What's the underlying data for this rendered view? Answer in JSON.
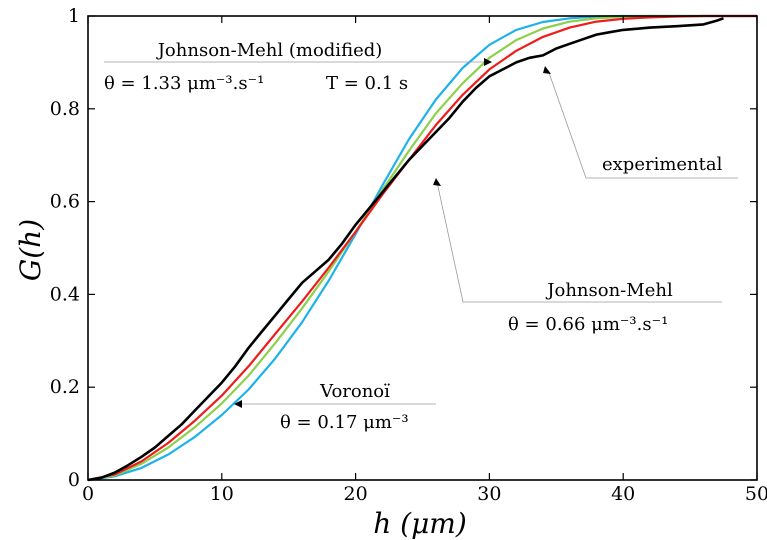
{
  "chart_data": {
    "type": "line",
    "xlabel": "h (μm)",
    "ylabel": "G(h)",
    "xlim": [
      0,
      50
    ],
    "ylim": [
      0,
      1
    ],
    "x_ticks": [
      "0",
      "10",
      "20",
      "30",
      "40",
      "50"
    ],
    "y_ticks": [
      "0",
      "0.2",
      "0.4",
      "0.6",
      "0.8",
      "1"
    ],
    "grid": false,
    "series": [
      {
        "name": "experimental",
        "color": "#000000",
        "x": [
          0,
          1,
          2,
          3,
          4,
          5,
          6,
          7,
          8,
          9,
          10,
          11,
          12,
          13,
          14,
          15,
          16,
          17,
          18,
          19,
          20,
          21,
          22,
          23,
          24,
          25,
          26,
          27,
          28,
          29,
          30,
          31,
          32,
          33,
          34,
          35,
          36,
          37,
          38,
          39,
          40,
          42,
          44,
          46,
          47,
          47.5
        ],
        "y": [
          0,
          0.005,
          0.016,
          0.032,
          0.05,
          0.07,
          0.095,
          0.12,
          0.15,
          0.18,
          0.21,
          0.245,
          0.285,
          0.32,
          0.355,
          0.39,
          0.425,
          0.45,
          0.475,
          0.51,
          0.55,
          0.585,
          0.62,
          0.655,
          0.69,
          0.72,
          0.75,
          0.78,
          0.815,
          0.845,
          0.87,
          0.885,
          0.9,
          0.91,
          0.915,
          0.93,
          0.94,
          0.95,
          0.96,
          0.965,
          0.97,
          0.975,
          0.978,
          0.982,
          0.99,
          0.995
        ]
      },
      {
        "name": "Johnson-Mehl (modified)",
        "color": "#ee1c1c",
        "x": [
          0,
          2,
          4,
          6,
          8,
          10,
          12,
          14,
          16,
          18,
          20,
          22,
          24,
          26,
          28,
          30,
          32,
          34,
          36,
          38,
          40,
          42,
          44,
          46,
          50
        ],
        "y": [
          0,
          0.012,
          0.04,
          0.08,
          0.128,
          0.182,
          0.245,
          0.315,
          0.385,
          0.458,
          0.535,
          0.615,
          0.69,
          0.765,
          0.83,
          0.885,
          0.925,
          0.955,
          0.975,
          0.988,
          0.994,
          0.997,
          0.999,
          1.0,
          1.0
        ]
      },
      {
        "name": "Johnson-Mehl",
        "color": "#8dd04b",
        "x": [
          0,
          2,
          4,
          6,
          8,
          10,
          12,
          14,
          16,
          18,
          20,
          22,
          24,
          26,
          28,
          30,
          32,
          34,
          36,
          38,
          40,
          42,
          50
        ],
        "y": [
          0,
          0.01,
          0.035,
          0.07,
          0.114,
          0.165,
          0.225,
          0.295,
          0.37,
          0.45,
          0.535,
          0.625,
          0.71,
          0.79,
          0.855,
          0.91,
          0.948,
          0.973,
          0.988,
          0.995,
          0.998,
          1.0,
          1.0
        ]
      },
      {
        "name": "Voronoï",
        "color": "#1eb2ea",
        "x": [
          0,
          2,
          4,
          6,
          8,
          10,
          12,
          14,
          16,
          18,
          20,
          22,
          24,
          26,
          28,
          30,
          32,
          34,
          36,
          38,
          40,
          50
        ],
        "y": [
          0,
          0.008,
          0.026,
          0.055,
          0.093,
          0.14,
          0.195,
          0.262,
          0.34,
          0.43,
          0.53,
          0.635,
          0.735,
          0.82,
          0.888,
          0.938,
          0.97,
          0.987,
          0.995,
          0.999,
          1.0,
          1.0
        ]
      }
    ],
    "annotations": [
      {
        "name": "jm-modified",
        "line1": "Johnson-Mehl (modified)",
        "line2": "θ = 1.33 μm⁻³.s⁻¹",
        "line3": "T = 0.1 s"
      },
      {
        "name": "experimental",
        "line1": "experimental"
      },
      {
        "name": "jm",
        "line1": "Johnson-Mehl",
        "line2": "θ = 0.66 μm⁻³.s⁻¹"
      },
      {
        "name": "voronoi",
        "line1": "Voronoï",
        "line2": "θ = 0.17 μm⁻³"
      }
    ]
  }
}
